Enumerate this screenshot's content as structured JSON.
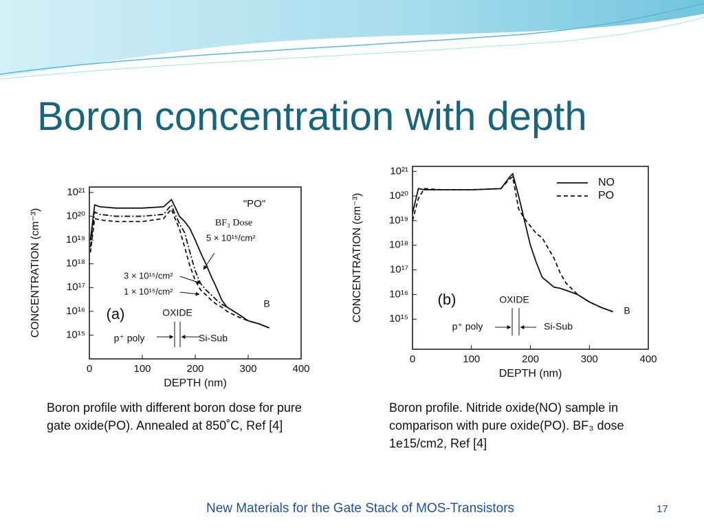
{
  "title": "Boron concentration with depth",
  "chart_data": [
    {
      "type": "line",
      "x_label": "DEPTH (nm)",
      "y_label": "CONCENTRATION (cm⁻³)",
      "y_scale": "log",
      "xlim": [
        0,
        400
      ],
      "xticks": [
        0,
        100,
        200,
        300,
        400
      ],
      "ylim": [
        100000000000000.0,
        1.7e+21
      ],
      "yticks": [
        {
          "value": 1000000000000000.0,
          "label": "10¹⁵"
        },
        {
          "value": 1e+16,
          "label": "10¹⁶"
        },
        {
          "value": 1e+17,
          "label": "10¹⁷"
        },
        {
          "value": 1e+18,
          "label": "10¹⁸"
        },
        {
          "value": 1e+19,
          "label": "10¹⁹"
        },
        {
          "value": 1e+20,
          "label": "10²⁰"
        },
        {
          "value": 1e+21,
          "label": "10²¹"
        }
      ],
      "x": [
        2,
        10,
        20,
        50,
        100,
        140,
        155,
        160,
        170,
        180,
        190,
        200,
        210,
        220,
        230,
        240,
        250,
        260,
        280,
        300,
        320,
        340
      ],
      "series": [
        {
          "name": "5 × 10¹⁵/cm²",
          "color": "#111111",
          "dash": "solid",
          "values": [
            1e+19,
            3e+20,
            2.5e+20,
            2.2e+20,
            2.2e+20,
            2.5e+20,
            5e+20,
            3e+20,
            1e+20,
            6e+19,
            3e+19,
            1e+19,
            3e+18,
            1e+18,
            3e+17,
            1e+17,
            3e+16,
            1.5e+16,
            8000000000000000.0,
            4000000000000000.0,
            3000000000000000.0,
            2000000000000000.0
          ]
        },
        {
          "name": "3 × 10¹⁵/cm²",
          "color": "#111111",
          "dash": "dashdot",
          "values": [
            5e+18,
            1.5e+20,
            1.2e+20,
            1e+20,
            1e+20,
            1.2e+20,
            3e+20,
            1.5e+20,
            5e+19,
            2e+19,
            3e+18,
            5e+17,
            1.5e+17,
            8e+16,
            5e+16,
            3e+16,
            2e+16,
            1.5e+16,
            8000000000000000.0,
            4000000000000000.0,
            3000000000000000.0,
            2000000000000000.0
          ]
        },
        {
          "name": "1 × 10¹⁵/cm²",
          "color": "#111111",
          "dash": "dashed",
          "values": [
            3e+18,
            8e+19,
            7e+19,
            6e+19,
            6e+19,
            8e+19,
            2e+20,
            1e+20,
            3e+19,
            5e+18,
            8e+17,
            2e+17,
            8e+16,
            5e+16,
            3e+16,
            2e+16,
            1.5e+16,
            1e+16,
            6000000000000000.0,
            4000000000000000.0,
            3000000000000000.0,
            2000000000000000.0
          ]
        }
      ],
      "annotations": [
        "\"PO\"",
        "BF₃ Dose",
        "(a)",
        "OXIDE",
        "p⁺ poly",
        "Si-Sub",
        "B"
      ]
    },
    {
      "type": "line",
      "x_label": "DEPTH (nm)",
      "y_label": "CONCENTRATION (cm⁻³)",
      "y_scale": "log",
      "xlim": [
        0,
        400
      ],
      "xticks": [
        0,
        100,
        200,
        300,
        400
      ],
      "ylim": [
        60000000000000.0,
        1.6e+21
      ],
      "yticks": [
        {
          "value": 1000000000000000.0,
          "label": "10¹⁵"
        },
        {
          "value": 1e+16,
          "label": "10¹⁶"
        },
        {
          "value": 1e+17,
          "label": "10¹⁷"
        },
        {
          "value": 1e+18,
          "label": "10¹⁸"
        },
        {
          "value": 1e+19,
          "label": "10¹⁹"
        },
        {
          "value": 1e+20,
          "label": "10²⁰"
        },
        {
          "value": 1e+21,
          "label": "10²¹"
        }
      ],
      "x": [
        0,
        10,
        20,
        50,
        100,
        150,
        165,
        170,
        180,
        190,
        200,
        210,
        220,
        240,
        250,
        260,
        280,
        300,
        320,
        340
      ],
      "legend": "upper right",
      "series": [
        {
          "name": "NO",
          "color": "#111111",
          "dash": "solid",
          "values": [
            2e+19,
            2e+20,
            1.8e+20,
            1.8e+20,
            1.8e+20,
            2e+20,
            6e+20,
            8e+20,
            1e+20,
            1e+19,
            1e+18,
            2e+17,
            5e+16,
            2e+16,
            1.8e+16,
            1.5e+16,
            1e+16,
            5000000000000000.0,
            3000000000000000.0,
            2000000000000000.0
          ]
        },
        {
          "name": "PO",
          "color": "#111111",
          "dash": "dashed",
          "values": [
            1e+19,
            8e+19,
            2e+20,
            1.8e+20,
            1.8e+20,
            2e+20,
            5e+20,
            6e+20,
            3e+19,
            1.2e+19,
            6e+18,
            3e+18,
            2e+18,
            3e+17,
            8e+16,
            3e+16,
            1e+16,
            5000000000000000.0,
            3000000000000000.0,
            2000000000000000.0
          ]
        }
      ],
      "annotations": [
        "(b)",
        "OXIDE",
        "p⁺ poly",
        "Si-Sub",
        "B"
      ]
    }
  ],
  "captions": [
    "Boron profile with different boron dose for pure gate oxide(PO). Annealed at 850˚C, Ref [4]",
    "Boron profile. Nitride oxide(NO) sample in comparison with pure oxide(PO). BF₃ dose 1e15/cm2, Ref [4]"
  ],
  "footer": "New Materials for the Gate Stack of MOS-Transistors",
  "page_number": "17"
}
